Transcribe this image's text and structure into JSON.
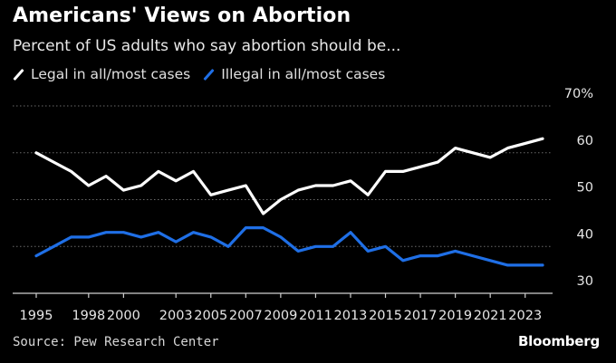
{
  "header": {
    "title": "Americans' Views on Abortion",
    "subtitle": "Percent of US adults who say abortion should be..."
  },
  "legend": [
    {
      "label": "Legal in all/most cases",
      "color": "#ffffff"
    },
    {
      "label": "Illegal in all/most cases",
      "color": "#1f6fe6"
    }
  ],
  "footer": {
    "source": "Source: Pew Research Center",
    "brand": "Bloomberg"
  },
  "chart_data": {
    "type": "line",
    "title": "Americans' Views on Abortion",
    "subtitle": "Percent of US adults who say abortion should be...",
    "xlabel": "",
    "ylabel": "",
    "xlim": [
      1995,
      2024
    ],
    "ylim": [
      30,
      70
    ],
    "y_ticks": [
      30,
      40,
      50,
      60,
      70
    ],
    "y_tick_labels": [
      "30",
      "40",
      "50",
      "60",
      "70%"
    ],
    "x_ticks": [
      1995,
      1998,
      2000,
      2003,
      2005,
      2007,
      2009,
      2011,
      2013,
      2015,
      2017,
      2019,
      2021,
      2023
    ],
    "grid": true,
    "legend_position": "top-left",
    "series": [
      {
        "name": "Legal in all/most cases",
        "color": "#ffffff",
        "x": [
          1995,
          1996,
          1997,
          1998,
          1999,
          2000,
          2001,
          2002,
          2003,
          2004,
          2005,
          2006,
          2007,
          2008,
          2009,
          2010,
          2011,
          2012,
          2013,
          2014,
          2015,
          2016,
          2017,
          2018,
          2019,
          2021,
          2022,
          2023,
          2024
        ],
        "values": [
          60,
          58,
          56,
          53,
          55,
          52,
          53,
          56,
          54,
          56,
          51,
          52,
          53,
          47,
          50,
          52,
          53,
          53,
          54,
          51,
          56,
          56,
          57,
          58,
          61,
          59,
          61,
          62,
          63
        ]
      },
      {
        "name": "Illegal in all/most cases",
        "color": "#1f6fe6",
        "x": [
          1995,
          1996,
          1997,
          1998,
          1999,
          2000,
          2001,
          2002,
          2003,
          2004,
          2005,
          2006,
          2007,
          2008,
          2009,
          2010,
          2011,
          2012,
          2013,
          2014,
          2015,
          2016,
          2017,
          2018,
          2019,
          2021,
          2022,
          2023,
          2024
        ],
        "values": [
          38,
          40,
          42,
          42,
          43,
          43,
          42,
          43,
          41,
          43,
          42,
          40,
          44,
          44,
          42,
          39,
          40,
          40,
          43,
          39,
          40,
          37,
          38,
          38,
          39,
          37,
          36,
          36,
          36
        ]
      }
    ]
  }
}
